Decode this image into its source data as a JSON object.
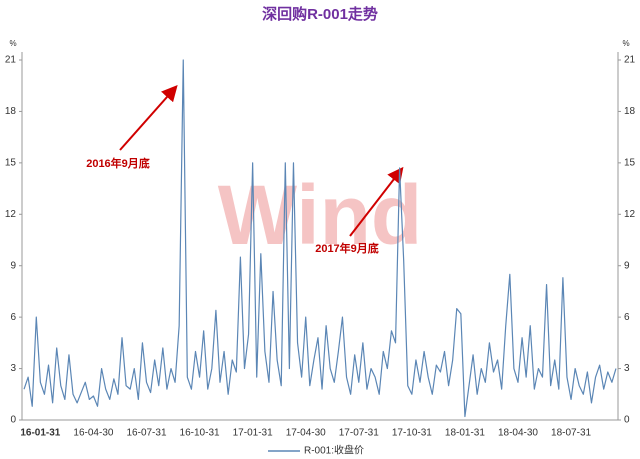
{
  "chart_data": {
    "type": "line",
    "title": "深回购R-001走势",
    "y_unit": "%",
    "y2_unit": "%",
    "watermark": "Wind",
    "annotations": [
      "2016年9月底",
      "2017年9月底"
    ],
    "categories": [
      null,
      null,
      null,
      null,
      "16-01-31",
      null,
      null,
      null,
      null,
      null,
      null,
      null,
      null,
      null,
      null,
      null,
      null,
      "16-04-30",
      null,
      null,
      null,
      null,
      null,
      null,
      null,
      null,
      null,
      null,
      null,
      null,
      "16-07-31",
      null,
      null,
      null,
      null,
      null,
      null,
      null,
      null,
      null,
      null,
      null,
      null,
      "16-10-31",
      null,
      null,
      null,
      null,
      null,
      null,
      null,
      null,
      null,
      null,
      null,
      null,
      "17-01-31",
      null,
      null,
      null,
      null,
      null,
      null,
      null,
      null,
      null,
      null,
      null,
      null,
      "17-04-30",
      null,
      null,
      null,
      null,
      null,
      null,
      null,
      null,
      null,
      null,
      null,
      null,
      "17-07-31",
      null,
      null,
      null,
      null,
      null,
      null,
      null,
      null,
      null,
      null,
      null,
      null,
      "17-10-31",
      null,
      null,
      null,
      null,
      null,
      null,
      null,
      null,
      null,
      null,
      null,
      null,
      "18-01-31",
      null,
      null,
      null,
      null,
      null,
      null,
      null,
      null,
      null,
      null,
      null,
      null,
      "18-04-30",
      null,
      null,
      null,
      null,
      null,
      null,
      null,
      null,
      null,
      null,
      null,
      null,
      "18-07-31",
      null,
      null,
      null,
      null,
      null,
      null,
      null,
      null,
      null,
      null,
      null
    ],
    "series": [
      {
        "name": "R-001:收盘价",
        "color": "#5b86b5",
        "values": [
          1.8,
          2.5,
          0.8,
          6.0,
          2.2,
          1.5,
          3.2,
          1.0,
          4.2,
          2.0,
          1.2,
          3.8,
          1.5,
          1.0,
          1.6,
          2.2,
          1.2,
          1.4,
          0.8,
          3.0,
          1.8,
          1.2,
          2.4,
          1.5,
          4.8,
          2.0,
          1.8,
          3.0,
          1.2,
          4.5,
          2.2,
          1.6,
          3.5,
          2.0,
          4.2,
          1.8,
          3.0,
          2.2,
          5.5,
          21.0,
          2.5,
          1.8,
          4.0,
          2.5,
          5.2,
          1.8,
          3.0,
          6.4,
          2.2,
          4.0,
          1.5,
          3.5,
          2.8,
          9.5,
          3.0,
          5.0,
          15.0,
          2.5,
          9.7,
          4.0,
          2.2,
          7.5,
          3.5,
          2.0,
          15.0,
          3.0,
          15.0,
          4.5,
          2.5,
          6.0,
          2.0,
          3.5,
          4.8,
          1.8,
          5.5,
          3.0,
          2.2,
          4.0,
          6.0,
          2.5,
          1.5,
          3.8,
          2.2,
          4.5,
          1.8,
          3.0,
          2.5,
          1.5,
          4.0,
          3.0,
          5.2,
          4.5,
          14.7,
          9.3,
          2.0,
          1.5,
          3.5,
          2.2,
          4.0,
          2.5,
          1.5,
          3.2,
          2.8,
          4.0,
          2.0,
          3.5,
          6.5,
          6.2,
          0.2,
          2.0,
          3.8,
          1.5,
          3.0,
          2.2,
          4.5,
          2.8,
          3.5,
          1.8,
          5.5,
          8.5,
          3.0,
          2.2,
          4.8,
          2.5,
          5.5,
          1.8,
          3.0,
          2.5,
          7.9,
          2.0,
          3.5,
          1.8,
          8.3,
          2.5,
          1.2,
          3.0,
          2.0,
          1.5,
          2.8,
          1.0,
          2.5,
          3.2,
          1.8,
          2.8,
          2.2,
          3.0
        ]
      }
    ],
    "ylim": [
      0,
      21
    ],
    "yticks": [
      0,
      3,
      6,
      9,
      12,
      15,
      18,
      21
    ],
    "y2lim": [
      0,
      21
    ],
    "y2ticks": [
      0,
      3,
      6,
      9,
      12,
      15,
      18,
      21
    ],
    "grid": false
  }
}
